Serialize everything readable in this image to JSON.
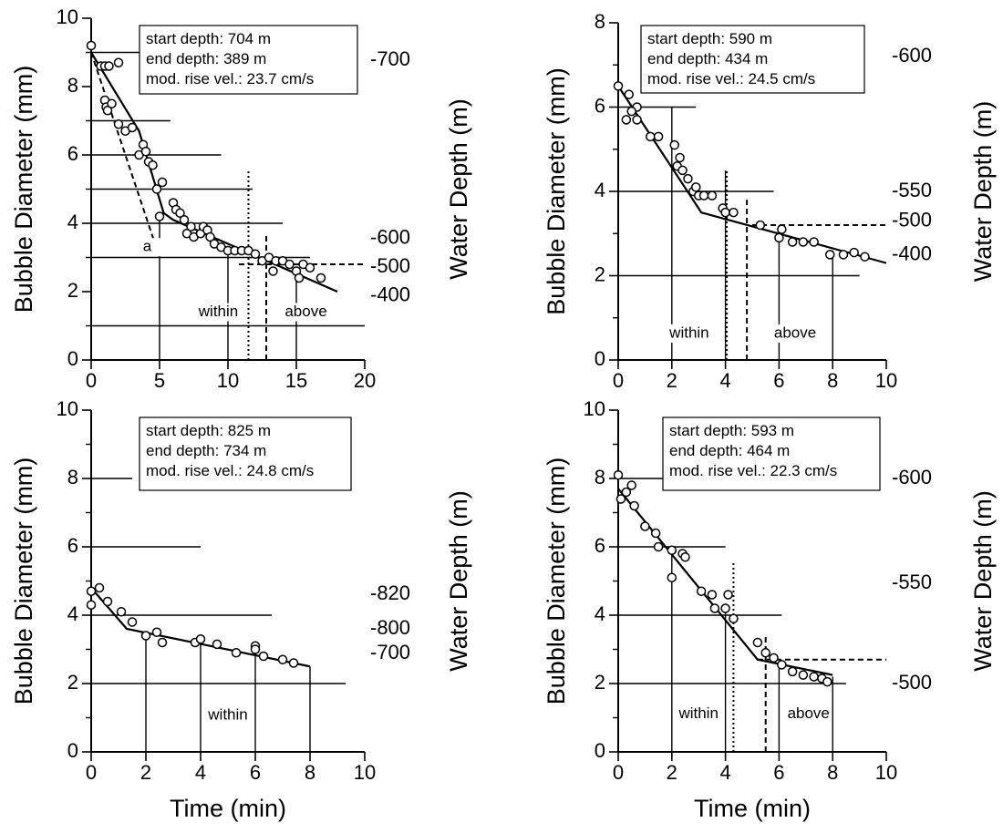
{
  "chart_data": [
    {
      "type": "scatter",
      "ylabel": "Bubble Diameter (mm)",
      "y2label": "Water Depth (m)",
      "xlim": [
        0,
        20
      ],
      "xticks": [
        0,
        5,
        10,
        15,
        20
      ],
      "ylim": [
        0,
        10
      ],
      "yticks": [
        0,
        2,
        4,
        6,
        8,
        10
      ],
      "y2ticks": [
        -700,
        -600,
        -500,
        -400
      ],
      "notes": [
        "start depth: 704 m",
        "end depth: 389 m",
        "mod. rise vel.: 23.7 cm/s"
      ],
      "labels": [
        "within",
        "above",
        "a"
      ],
      "x": [
        0,
        0.7,
        1,
        1.3,
        2,
        1,
        1.1,
        1.2,
        1.5,
        2,
        2.5,
        3,
        3.5,
        3.8,
        4,
        4.2,
        4.5,
        4.8,
        5,
        5.2,
        6,
        6.2,
        6.5,
        6.8,
        7,
        7.3,
        7.5,
        8,
        8.2,
        8.5,
        8.7,
        9,
        9.5,
        10,
        10.5,
        11,
        11.5,
        12,
        12.5,
        13,
        13.3,
        13.5,
        14,
        14.5,
        15,
        15.2,
        15.5,
        16,
        16.8
      ],
      "values": [
        9.2,
        8.6,
        8.6,
        8.6,
        8.7,
        7.6,
        7.4,
        7.3,
        7.5,
        6.9,
        6.7,
        6.8,
        6,
        6.3,
        6.1,
        5.8,
        5.7,
        5,
        4.2,
        5.2,
        4.6,
        4.4,
        4.3,
        4.1,
        3.7,
        3.9,
        3.6,
        3.7,
        3.9,
        3.8,
        3.6,
        3.4,
        3.3,
        3.2,
        3.2,
        3.2,
        3.2,
        3.1,
        2.9,
        3.0,
        2.6,
        2.9,
        2.9,
        2.8,
        2.6,
        2.4,
        2.8,
        2.7,
        2.4
      ],
      "model": {
        "x": [
          0,
          3.5,
          5.3,
          6,
          18
        ],
        "values": [
          9,
          6.7,
          4.3,
          4.1,
          2.0
        ]
      }
    },
    {
      "type": "scatter",
      "ylabel": "Bubble Diameter (mm)",
      "y2label": "Water Depth (m)",
      "xlim": [
        0,
        10
      ],
      "xticks": [
        0,
        2,
        4,
        6,
        8,
        10
      ],
      "ylim": [
        0,
        8
      ],
      "yticks": [
        0,
        2,
        4,
        6,
        8
      ],
      "y2ticks": [
        -600,
        -550,
        -500,
        -400
      ],
      "notes": [
        "start depth: 590 m",
        "end depth: 434 m",
        "mod. rise vel.: 24.5 cm/s"
      ],
      "labels": [
        "within",
        "above"
      ],
      "x": [
        0,
        0.3,
        0.4,
        0.7,
        0.7,
        0.5,
        1.2,
        1.5,
        2.1,
        2.2,
        2.3,
        2.4,
        2.6,
        2.8,
        2.9,
        3.0,
        3.2,
        3.5,
        3.9,
        4.0,
        4.3,
        5.3,
        6.0,
        6.1,
        6.5,
        6.9,
        7.3,
        7.9,
        8.4,
        8.8,
        9.2
      ],
      "values": [
        6.5,
        5.7,
        6.3,
        5.7,
        6.0,
        5.9,
        5.3,
        5.3,
        5.1,
        4.6,
        4.8,
        4.5,
        4.3,
        4.0,
        4.1,
        3.9,
        3.9,
        3.9,
        3.6,
        3.5,
        3.5,
        3.2,
        2.9,
        3.1,
        2.8,
        2.8,
        2.8,
        2.5,
        2.5,
        2.55,
        2.45
      ],
      "model": {
        "x": [
          0,
          3.1,
          10
        ],
        "values": [
          6.5,
          3.5,
          2.3
        ]
      }
    },
    {
      "type": "scatter",
      "ylabel": "Bubble Diameter (mm)",
      "y2label": "Water Depth (m)",
      "xlabel": "Time (min)",
      "xlim": [
        0,
        10
      ],
      "xticks": [
        0,
        2,
        4,
        6,
        8,
        10
      ],
      "ylim": [
        0,
        10
      ],
      "yticks": [
        0,
        2,
        4,
        6,
        8,
        10
      ],
      "y2ticks": [
        -820,
        -800,
        -700
      ],
      "notes": [
        "start depth: 825 m",
        "end depth: 734 m",
        "mod. rise vel.: 24.8 cm/s"
      ],
      "labels": [
        "within"
      ],
      "x": [
        0,
        0,
        0.3,
        0.6,
        1.1,
        1.5,
        2,
        2.4,
        2.6,
        3.8,
        4,
        4.6,
        5.3,
        6,
        6,
        6.3,
        7,
        7.4
      ],
      "values": [
        4.7,
        4.3,
        4.8,
        4.4,
        4.1,
        3.8,
        3.4,
        3.5,
        3.2,
        3.2,
        3.3,
        3.15,
        2.9,
        3.1,
        3.0,
        2.8,
        2.7,
        2.6
      ],
      "model": {
        "x": [
          0,
          1.3,
          8
        ],
        "values": [
          4.8,
          3.6,
          2.5
        ]
      }
    },
    {
      "type": "scatter",
      "ylabel": "Bubble Diameter (mm)",
      "y2label": "Water Depth (m)",
      "xlabel": "Time (min)",
      "xlim": [
        0,
        10
      ],
      "xticks": [
        0,
        2,
        4,
        6,
        8,
        10
      ],
      "ylim": [
        0,
        10
      ],
      "yticks": [
        0,
        2,
        4,
        6,
        8,
        10
      ],
      "y2ticks": [
        -600,
        -550,
        -500
      ],
      "notes": [
        "start depth: 593 m",
        "end depth: 464 m",
        "mod. rise vel.: 22.3 cm/s"
      ],
      "labels": [
        "within",
        "above"
      ],
      "x": [
        0,
        0.1,
        0.3,
        0.6,
        0.5,
        1,
        1.4,
        1.5,
        2,
        2,
        2.4,
        2.5,
        3.1,
        3.5,
        3.6,
        4,
        4.1,
        4.3,
        5.2,
        5.5,
        5.8,
        6.1,
        6.5,
        6.9,
        7.3,
        7.6,
        7.8
      ],
      "values": [
        8.1,
        7.4,
        7.6,
        7.2,
        7.8,
        6.6,
        6.4,
        6,
        5.9,
        5.1,
        5.8,
        5.7,
        4.7,
        4.6,
        4.2,
        4.2,
        4.6,
        3.9,
        3.2,
        2.9,
        2.75,
        2.55,
        2.35,
        2.25,
        2.2,
        2.15,
        2.05
      ],
      "model": {
        "x": [
          0,
          5.2,
          8
        ],
        "values": [
          7.7,
          2.7,
          2.25
        ]
      }
    }
  ]
}
